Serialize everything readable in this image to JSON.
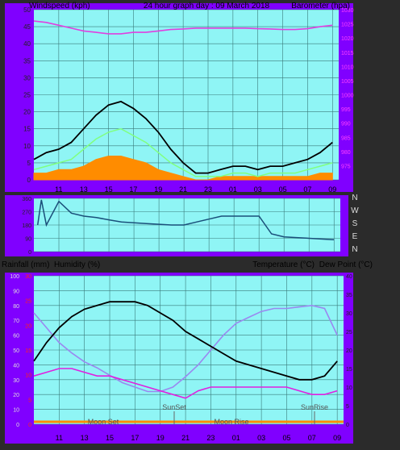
{
  "header": {
    "left_label": "Windspeed (kph)",
    "center_title": "24 hour graph day : 09 March 2018",
    "right_label": "Barometer (hpa)"
  },
  "middle_header": {
    "left_label": "Rainfall (mm)",
    "left_label2": "Humidity (%)",
    "right_label": "Temperature (°C)",
    "right_label2": "Dew Point (°C)"
  },
  "compass": [
    "N",
    "W",
    "S",
    "E",
    "N"
  ],
  "annotations": {
    "moon_set": "Moon Set",
    "sun_set": "SunSet",
    "moon_rise": "Moon Rise",
    "sun_rise": "SunRise"
  },
  "colors": {
    "panel_bg": "#8ff5f5",
    "frame": "#8000ff",
    "wind_gust": "#000000",
    "wind_avg": "#80ff80",
    "wind_fill": "#ff8c00",
    "barometer": "#e040e0",
    "direction": "#1a4f7a",
    "temperature": "#000000",
    "dew_point": "#e020e0",
    "humidity": "#9a88f0"
  },
  "chart_data": [
    {
      "type": "line",
      "name": "wind-and-barometer",
      "x_ticks": [
        "11",
        "13",
        "15",
        "17",
        "19",
        "21",
        "23",
        "01",
        "03",
        "05",
        "07",
        "09"
      ],
      "ylabel": "Windspeed (kph)",
      "ylim": [
        0,
        50
      ],
      "y_ticks": [
        0,
        5,
        10,
        15,
        20,
        25,
        30,
        35,
        40,
        45,
        50
      ],
      "y2label": "Barometer (hpa)",
      "y2lim": [
        970,
        1030
      ],
      "y2_ticks": [
        975,
        980,
        985,
        990,
        995,
        1000,
        1005,
        1010,
        1015,
        1020,
        1025,
        1030
      ],
      "x_hours": [
        9,
        10,
        11,
        12,
        13,
        14,
        15,
        16,
        17,
        18,
        19,
        20,
        21,
        22,
        23,
        24,
        25,
        26,
        27,
        28,
        29,
        30,
        31,
        32,
        33
      ],
      "series": [
        {
          "key": "gust",
          "values": [
            6,
            8,
            9,
            11,
            15,
            19,
            22,
            23,
            21,
            18,
            14,
            9,
            5,
            2,
            2,
            3,
            4,
            4,
            3,
            4,
            4,
            5,
            6,
            8,
            11
          ]
        },
        {
          "key": "average",
          "values": [
            3,
            4,
            5,
            6,
            9,
            12,
            14,
            15,
            13,
            11,
            8,
            5,
            3,
            1,
            1,
            1,
            2,
            2,
            1,
            2,
            2,
            2,
            3,
            4,
            5
          ]
        },
        {
          "key": "fill",
          "values": [
            2,
            2,
            3,
            3,
            4,
            6,
            7,
            7,
            6,
            5,
            3,
            2,
            1,
            0,
            0,
            1,
            1,
            1,
            1,
            1,
            1,
            1,
            1,
            2,
            2
          ]
        },
        {
          "key": "barometer",
          "values": [
            1026,
            1025.5,
            1024.5,
            1023.5,
            1022.5,
            1022,
            1021.5,
            1021.5,
            1022,
            1022,
            1022.5,
            1023,
            1023.2,
            1023.5,
            1023.5,
            1023.5,
            1023.5,
            1023.5,
            1023.3,
            1023.2,
            1023,
            1023,
            1023.3,
            1024,
            1024.5
          ]
        }
      ]
    },
    {
      "type": "line",
      "name": "wind-direction",
      "x_hours": [
        9.3,
        9.6,
        10,
        11,
        12,
        13,
        14,
        15,
        16,
        17,
        18,
        19,
        20,
        21,
        22,
        23,
        24,
        25,
        26,
        27,
        28,
        29,
        30,
        31,
        32,
        33
      ],
      "y_ticks": [
        0,
        90,
        180,
        270,
        360
      ],
      "ylim": [
        0,
        360
      ],
      "series": [
        {
          "key": "direction",
          "values": [
            180,
            350,
            180,
            340,
            260,
            240,
            230,
            215,
            200,
            195,
            190,
            185,
            180,
            180,
            200,
            220,
            240,
            240,
            240,
            240,
            120,
            100,
            95,
            90,
            85,
            80
          ]
        }
      ]
    },
    {
      "type": "line",
      "name": "temp-humidity",
      "x_ticks": [
        "11",
        "13",
        "15",
        "17",
        "19",
        "21",
        "23",
        "01",
        "03",
        "05",
        "07",
        "09"
      ],
      "ylabel": "Humidity (%)",
      "ylim": [
        0,
        100
      ],
      "y_ticks": [
        0,
        10,
        20,
        30,
        40,
        50,
        60,
        70,
        80,
        90,
        100
      ],
      "y_rain_ticks": [
        0,
        5,
        10,
        15,
        20,
        25,
        30
      ],
      "y2label": "Temperature (°C)",
      "y2lim": [
        0,
        40
      ],
      "y2_ticks": [
        0,
        5,
        10,
        15,
        20,
        25,
        30,
        35,
        40
      ],
      "x_hours": [
        9,
        10,
        11,
        12,
        13,
        14,
        15,
        16,
        17,
        18,
        19,
        20,
        21,
        22,
        23,
        24,
        25,
        26,
        27,
        28,
        29,
        30,
        31,
        32,
        33
      ],
      "series": [
        {
          "key": "temperature",
          "values": [
            17,
            22,
            26,
            29,
            31,
            32,
            33,
            33,
            33,
            32,
            30,
            28,
            25,
            23,
            21,
            19,
            17,
            16,
            15,
            14,
            13,
            12,
            12,
            13,
            17
          ]
        },
        {
          "key": "dew_point",
          "values": [
            13,
            14,
            15,
            15,
            14,
            13,
            13,
            12,
            11,
            10,
            9,
            8,
            7,
            9,
            10,
            10,
            10,
            10,
            10,
            10,
            10,
            9,
            8,
            8,
            9
          ]
        },
        {
          "key": "humidity",
          "values": [
            75,
            65,
            55,
            48,
            42,
            38,
            33,
            28,
            25,
            22,
            22,
            25,
            32,
            40,
            50,
            60,
            68,
            72,
            76,
            78,
            78,
            79,
            80,
            78,
            60
          ]
        }
      ]
    }
  ]
}
